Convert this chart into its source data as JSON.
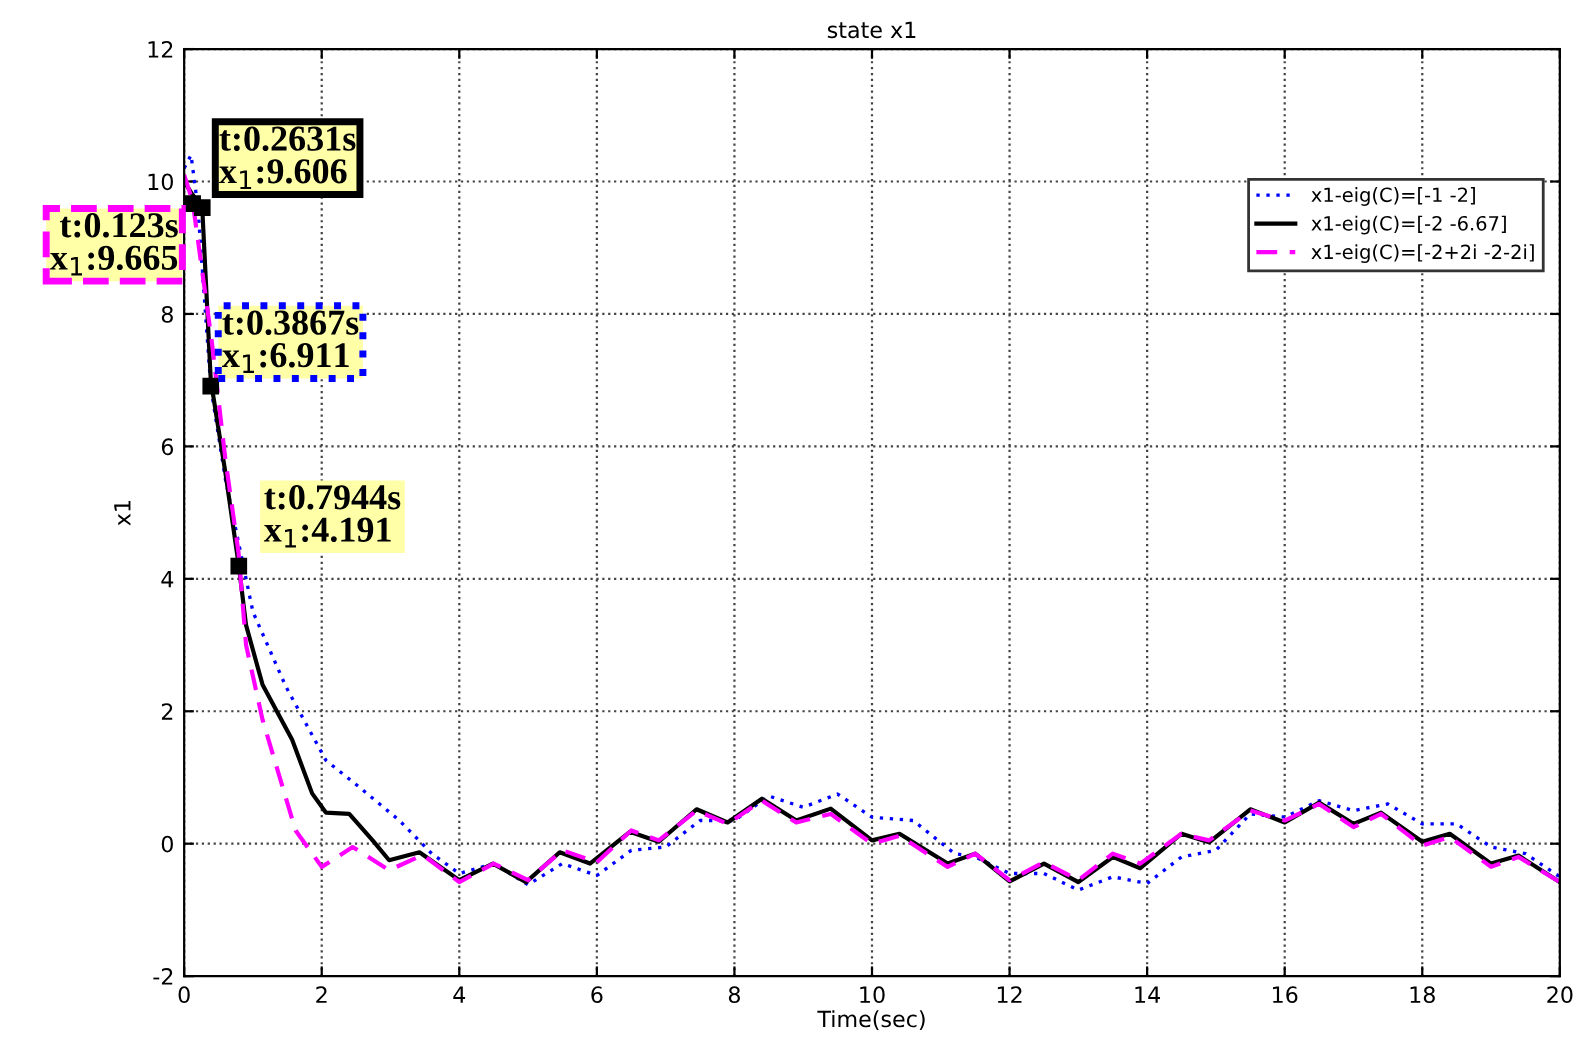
{
  "chart_data": {
    "type": "line",
    "title": "state x1",
    "xlabel": "Time(sec)",
    "ylabel": "x1",
    "xlim": [
      0,
      20
    ],
    "xticks": [
      0,
      2,
      4,
      6,
      8,
      10,
      12,
      14,
      16,
      18,
      20
    ],
    "ylim": [
      -2,
      12
    ],
    "yticks": [
      -2,
      0,
      2,
      4,
      6,
      8,
      10,
      12
    ],
    "grid": true,
    "legend": "top right",
    "series": [
      {
        "name": "x1-eig(C)=[-1 -2]",
        "color": "#0000ff",
        "line_style": "dotted",
        "x": [
          0,
          0.1,
          0.2,
          0.3867,
          0.6,
          0.8,
          1.0,
          1.48,
          2.06,
          2.54,
          3.13,
          3.6,
          4.0,
          4.5,
          5.0,
          5.5,
          6.0,
          6.5,
          7.0,
          7.5,
          8.0,
          8.5,
          9.0,
          9.5,
          10.0,
          10.6,
          11.2,
          11.5,
          12.0,
          12.5,
          13.0,
          13.5,
          14.0,
          14.5,
          15.0,
          15.5,
          16.0,
          16.5,
          17.0,
          17.5,
          18.0,
          18.5,
          19.0,
          19.5,
          20.0
        ],
        "values": [
          10.2,
          10.4,
          9.6,
          6.9,
          5.5,
          4.5,
          3.5,
          2.37,
          1.26,
          0.86,
          0.35,
          -0.15,
          -0.45,
          -0.3,
          -0.62,
          -0.3,
          -0.48,
          -0.1,
          -0.05,
          0.35,
          0.35,
          0.72,
          0.55,
          0.75,
          0.4,
          0.35,
          -0.15,
          -0.2,
          -0.45,
          -0.45,
          -0.7,
          -0.5,
          -0.6,
          -0.2,
          -0.1,
          0.45,
          0.4,
          0.65,
          0.5,
          0.6,
          0.3,
          0.3,
          -0.05,
          -0.15,
          -0.5
        ]
      },
      {
        "name": "x1-eig(C)=[-2 -6.67]",
        "color": "#000000",
        "line_style": "solid",
        "x": [
          0,
          0.123,
          0.2631,
          0.3867,
          0.6,
          0.7944,
          0.9,
          1.14,
          1.57,
          1.86,
          2.06,
          2.4,
          2.74,
          2.98,
          3.42,
          4.0,
          4.49,
          4.97,
          5.46,
          5.9,
          6.48,
          6.9,
          7.45,
          7.9,
          8.4,
          8.9,
          9.4,
          10.0,
          10.4,
          11.1,
          11.5,
          12.0,
          12.5,
          13.0,
          13.5,
          13.9,
          14.5,
          14.9,
          15.5,
          16.0,
          16.5,
          17.0,
          17.4,
          18.0,
          18.4,
          19.0,
          19.4,
          20.0
        ],
        "values": [
          10.0,
          9.8,
          9.6,
          7.0,
          5.6,
          4.2,
          3.3,
          2.4,
          1.57,
          0.76,
          0.47,
          0.45,
          0.05,
          -0.25,
          -0.13,
          -0.55,
          -0.3,
          -0.58,
          -0.13,
          -0.3,
          0.18,
          0.03,
          0.52,
          0.32,
          0.68,
          0.35,
          0.53,
          0.05,
          0.15,
          -0.3,
          -0.15,
          -0.57,
          -0.3,
          -0.58,
          -0.2,
          -0.37,
          0.15,
          0.02,
          0.52,
          0.32,
          0.62,
          0.3,
          0.47,
          0.03,
          0.15,
          -0.3,
          -0.18,
          -0.58
        ]
      },
      {
        "name": "x1-eig(C)=[-2+2i -2-2i]",
        "color": "#ff00ff",
        "line_style": "dashed",
        "x": [
          0,
          0.123,
          0.4,
          0.6,
          0.79,
          0.9,
          1.14,
          1.43,
          1.62,
          2.0,
          2.45,
          2.98,
          3.47,
          4.0,
          4.5,
          5.0,
          5.5,
          6.0,
          6.5,
          6.9,
          7.45,
          7.9,
          8.4,
          8.9,
          9.4,
          10.0,
          10.4,
          11.1,
          11.5,
          12.0,
          12.5,
          13.0,
          13.5,
          13.9,
          14.5,
          14.9,
          15.5,
          16.0,
          16.5,
          17.0,
          17.4,
          18.0,
          18.4,
          19.0,
          19.4,
          20.0
        ],
        "values": [
          10.1,
          9.7,
          7.6,
          5.8,
          4.4,
          3.0,
          1.87,
          0.86,
          0.2,
          -0.35,
          -0.05,
          -0.4,
          -0.17,
          -0.58,
          -0.3,
          -0.55,
          -0.1,
          -0.28,
          0.2,
          0.05,
          0.5,
          0.3,
          0.65,
          0.32,
          0.45,
          0.0,
          0.12,
          -0.35,
          -0.15,
          -0.55,
          -0.28,
          -0.55,
          -0.15,
          -0.3,
          0.15,
          0.05,
          0.5,
          0.35,
          0.6,
          0.25,
          0.45,
          -0.03,
          0.1,
          -0.35,
          -0.2,
          -0.58
        ]
      }
    ],
    "annotations": [
      {
        "text": "t:0.2631s\nx$_{1}$:9.606",
        "x": 0.2631,
        "y": 9.606
      },
      {
        "text": "t:0.123s\nx$_{1}$:9.665",
        "x": 0.123,
        "y": 9.665
      },
      {
        "text": "t:0.3867s\nx$_{1}$:6.911",
        "x": 0.3867,
        "y": 6.911
      },
      {
        "text": "t:0.7944s\nx$_{1}$:4.191",
        "x": 0.7944,
        "y": 4.191
      }
    ]
  }
}
